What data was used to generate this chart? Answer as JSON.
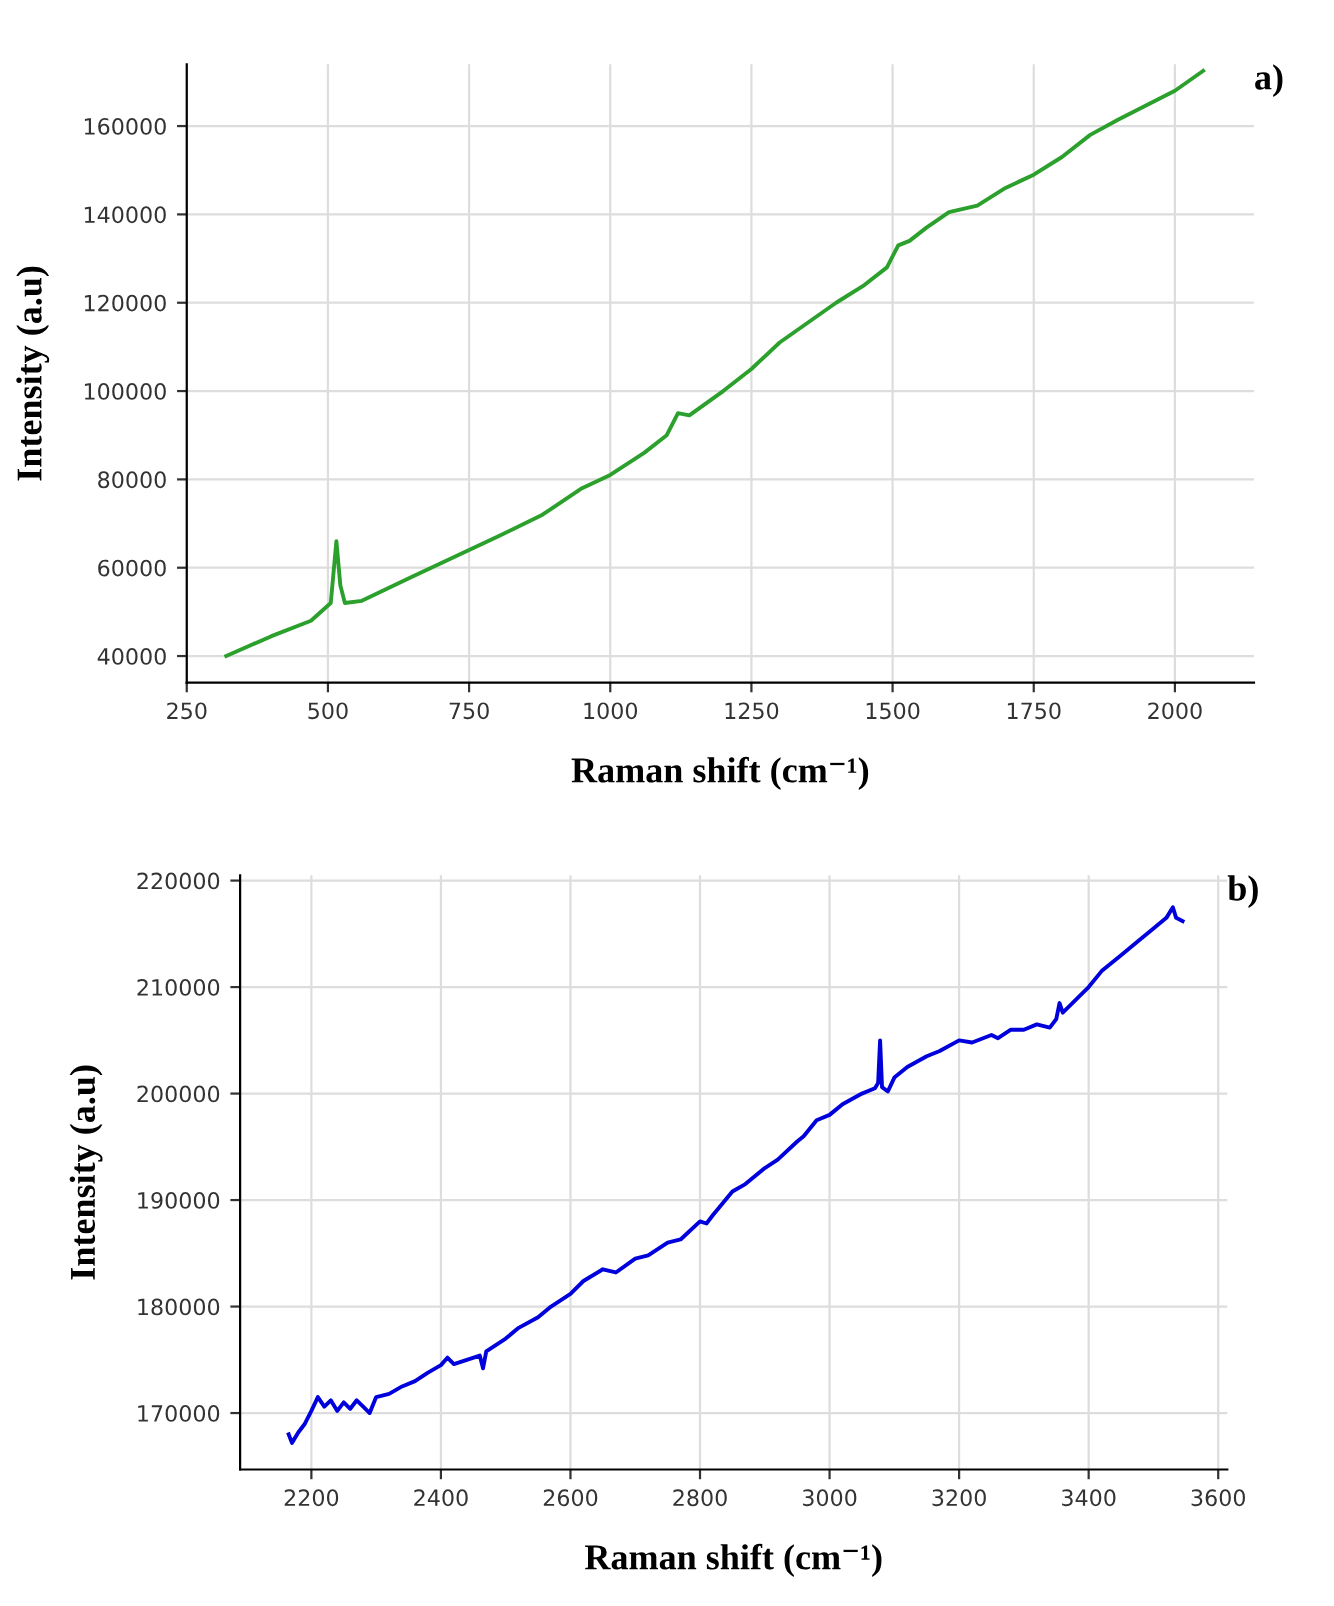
{
  "chart_data": [
    {
      "type": "line",
      "xlabel": "Raman shift (cm⁻¹)",
      "ylabel": "Intensity (a.u)",
      "annotations": [
        "a)"
      ],
      "xlim": [
        250,
        2140
      ],
      "ylim": [
        34000,
        174000
      ],
      "xticks": [
        250,
        500,
        750,
        1000,
        1250,
        1500,
        1750,
        2000
      ],
      "yticks": [
        40000,
        60000,
        80000,
        100000,
        120000,
        140000,
        160000
      ],
      "grid": true,
      "series": [
        {
          "color": "#2ca02c",
          "x": [
            320,
            400,
            470,
            505,
            515,
            522,
            530,
            560,
            650,
            750,
            800,
            880,
            950,
            1000,
            1060,
            1100,
            1120,
            1140,
            1200,
            1250,
            1300,
            1400,
            1450,
            1490,
            1510,
            1530,
            1560,
            1600,
            1650,
            1700,
            1750,
            1800,
            1850,
            1900,
            2000,
            2050
          ],
          "values": [
            40000,
            44500,
            48000,
            52000,
            66000,
            56000,
            52000,
            52500,
            58000,
            64000,
            67000,
            72000,
            78000,
            81000,
            86000,
            90000,
            95000,
            94500,
            100000,
            105000,
            111000,
            120000,
            124000,
            128000,
            133000,
            134000,
            137000,
            140500,
            142000,
            146000,
            149000,
            153000,
            158000,
            161500,
            168000,
            172500
          ]
        }
      ]
    },
    {
      "type": "line",
      "xlabel": "Raman shift (cm⁻¹)",
      "ylabel": "Intensity (a.u)",
      "annotations": [
        "b)"
      ],
      "xlim": [
        2090,
        3614
      ],
      "ylim": [
        164700,
        220500
      ],
      "xticks": [
        2200,
        2400,
        2600,
        2800,
        3000,
        3200,
        3400,
        3600
      ],
      "yticks": [
        170000,
        180000,
        190000,
        200000,
        210000,
        220000
      ],
      "grid": true,
      "series": [
        {
          "color": "#0000dd",
          "x": [
            2165,
            2170,
            2180,
            2190,
            2200,
            2210,
            2220,
            2230,
            2240,
            2250,
            2260,
            2270,
            2280,
            2290,
            2300,
            2320,
            2340,
            2360,
            2380,
            2400,
            2410,
            2420,
            2440,
            2460,
            2465,
            2470,
            2500,
            2520,
            2550,
            2570,
            2600,
            2620,
            2650,
            2670,
            2700,
            2720,
            2750,
            2770,
            2800,
            2810,
            2820,
            2850,
            2870,
            2900,
            2920,
            2950,
            2960,
            2980,
            3000,
            3020,
            3050,
            3070,
            3075,
            3078,
            3081,
            3090,
            3100,
            3120,
            3150,
            3170,
            3200,
            3220,
            3250,
            3260,
            3280,
            3300,
            3320,
            3340,
            3350,
            3355,
            3360,
            3380,
            3400,
            3420,
            3450,
            3470,
            3500,
            3520,
            3530,
            3535,
            3545
          ],
          "values": [
            168000,
            167200,
            168200,
            169000,
            170200,
            171500,
            170600,
            171200,
            170200,
            171000,
            170400,
            171200,
            170600,
            170000,
            171500,
            171800,
            172500,
            173000,
            173800,
            174500,
            175200,
            174600,
            175000,
            175400,
            174200,
            175800,
            177000,
            178000,
            179000,
            180000,
            181200,
            182400,
            183500,
            183200,
            184500,
            184800,
            186000,
            186300,
            188000,
            187800,
            188600,
            190800,
            191500,
            193000,
            193800,
            195500,
            196000,
            197500,
            198000,
            199000,
            200000,
            200500,
            201000,
            205000,
            200600,
            200200,
            201500,
            202500,
            203500,
            204000,
            205000,
            204800,
            205500,
            205200,
            206000,
            206000,
            206500,
            206200,
            207000,
            208500,
            207600,
            208800,
            210000,
            211500,
            213000,
            214000,
            215500,
            216500,
            217500,
            216500,
            216200
          ]
        }
      ]
    }
  ]
}
